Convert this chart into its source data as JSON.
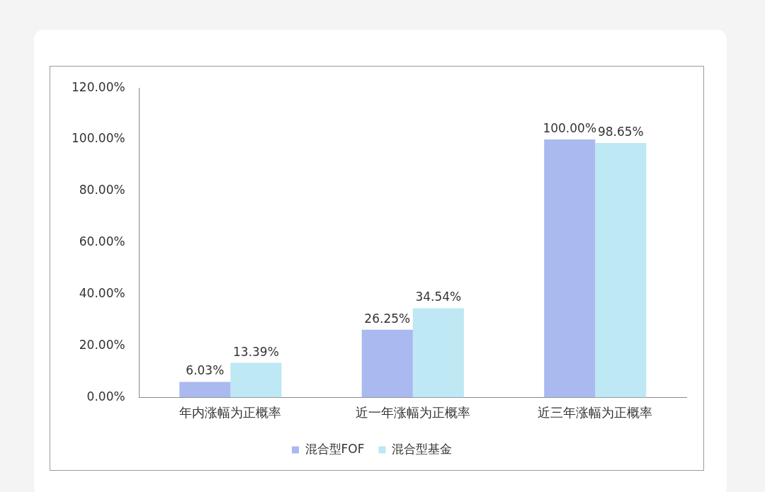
{
  "chart_data": {
    "type": "bar",
    "categories": [
      "年内涨幅为正概率",
      "近一年涨幅为正概率",
      "近三年涨幅为正概率"
    ],
    "series": [
      {
        "name": "混合型FOF",
        "color": "#aab9ef",
        "values": [
          6.03,
          26.25,
          100
        ],
        "value_labels": [
          "6.03%",
          "26.25%",
          "100.00%"
        ]
      },
      {
        "name": "混合型基金",
        "color": "#bde8f4",
        "values": [
          13.39,
          34.54,
          98.65
        ],
        "value_labels": [
          "13.39%",
          "34.54%",
          "98.65%"
        ]
      }
    ],
    "ylim": [
      0,
      120
    ],
    "yticks": [
      {
        "value": 0,
        "label": "0.00%"
      },
      {
        "value": 20,
        "label": "20.00%"
      },
      {
        "value": 40,
        "label": "40.00%"
      },
      {
        "value": 60,
        "label": "60.00%"
      },
      {
        "value": 80,
        "label": "80.00%"
      },
      {
        "value": 100,
        "label": "100.00%"
      },
      {
        "value": 120,
        "label": "120.00%"
      }
    ],
    "grid": false,
    "legend": "bottom"
  }
}
